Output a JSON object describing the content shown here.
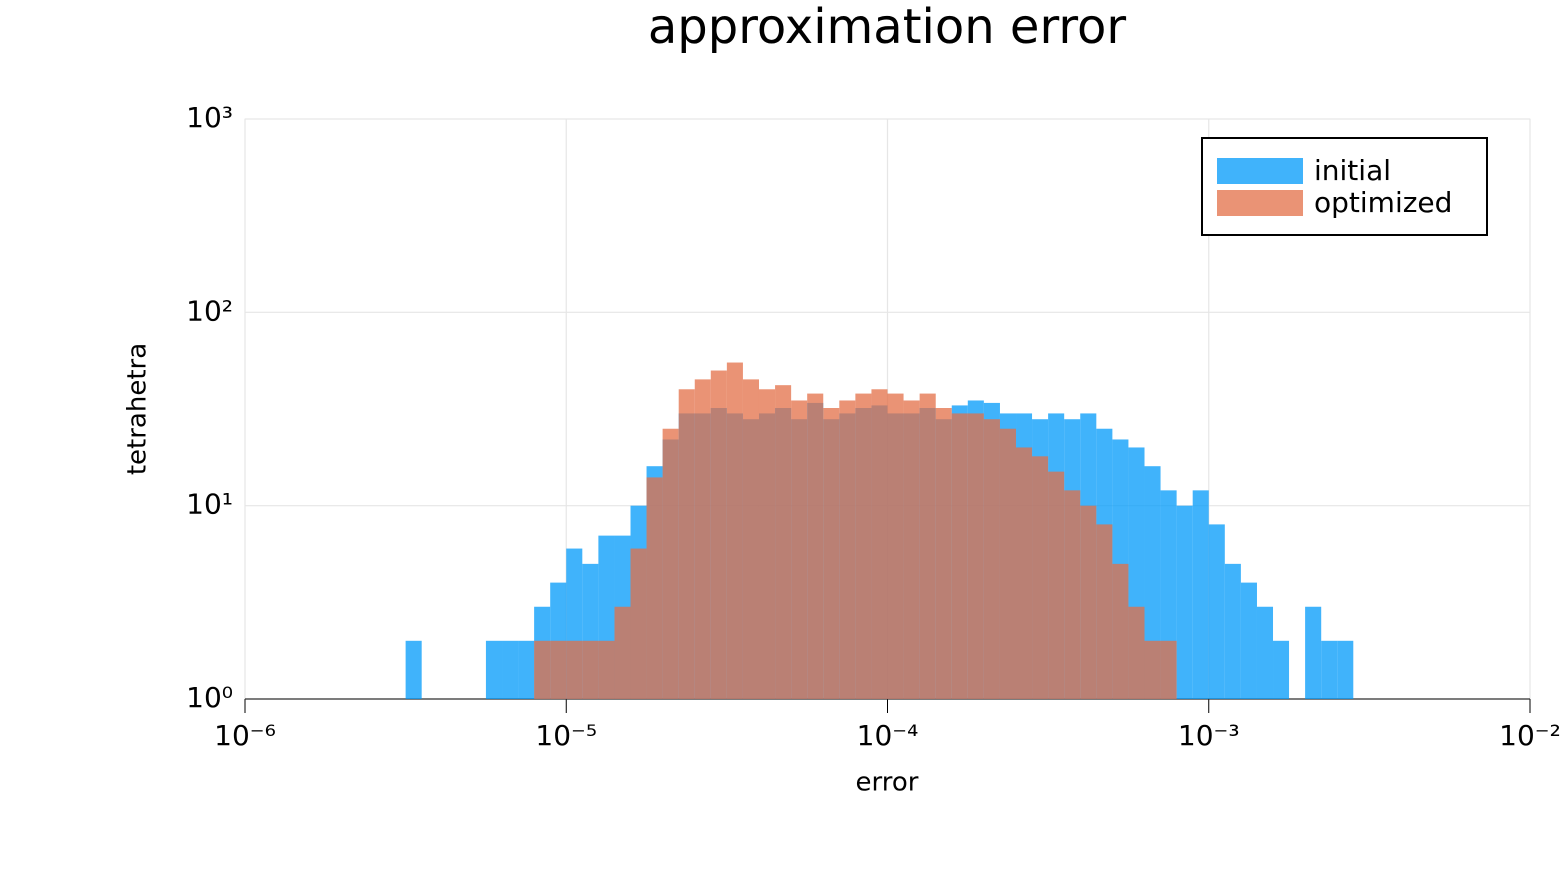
{
  "chart_data": {
    "type": "histogram",
    "title": "approximation error",
    "x_label": "error",
    "y_label": "tetrahetra",
    "xscale": "log",
    "yscale": "log",
    "grid": true,
    "legend": "top-right",
    "xlim": [
      1e-06,
      0.01
    ],
    "xticks": [
      {
        "value": 1e-06,
        "label": "10⁻⁶"
      },
      {
        "value": 1e-05,
        "label": "10⁻⁵"
      },
      {
        "value": 0.0001,
        "label": "10⁻⁴"
      },
      {
        "value": 0.001,
        "label": "10⁻³"
      },
      {
        "value": 0.01,
        "label": "10⁻²"
      }
    ],
    "ylim": [
      1,
      1000
    ],
    "yticks": [
      {
        "value": 1,
        "label": "10⁰"
      },
      {
        "value": 10,
        "label": "10¹"
      },
      {
        "value": 100,
        "label": "10²"
      },
      {
        "value": 1000,
        "label": "10³"
      }
    ],
    "bins": [
      3.162e-06,
      3.548e-06,
      3.981e-06,
      4.467e-06,
      5.012e-06,
      5.623e-06,
      6.31e-06,
      7.079e-06,
      7.943e-06,
      8.913e-06,
      1e-05,
      1.122e-05,
      1.259e-05,
      1.413e-05,
      1.585e-05,
      1.778e-05,
      1.995e-05,
      2.239e-05,
      2.512e-05,
      2.818e-05,
      3.162e-05,
      3.548e-05,
      3.981e-05,
      4.467e-05,
      5.012e-05,
      5.623e-05,
      6.31e-05,
      7.079e-05,
      7.943e-05,
      8.913e-05,
      0.0001,
      0.0001122,
      0.0001259,
      0.0001413,
      0.0001585,
      0.0001778,
      0.0001995,
      0.0002239,
      0.0002512,
      0.0002818,
      0.0003162,
      0.0003548,
      0.0003981,
      0.0004467,
      0.0005012,
      0.0005623,
      0.000631,
      0.0007079,
      0.0007943,
      0.0008913,
      0.001,
      0.001122,
      0.001259,
      0.001413,
      0.001585,
      0.001778,
      0.001995,
      0.002239,
      0.002512,
      0.002818
    ],
    "series": [
      {
        "name": "initial",
        "color": "#009afa",
        "values": [
          2,
          0,
          0,
          0,
          0,
          2,
          2,
          2,
          3,
          4,
          6,
          5,
          7,
          7,
          10,
          16,
          22,
          30,
          30,
          32,
          30,
          28,
          30,
          32,
          28,
          34,
          28,
          30,
          32,
          33,
          30,
          30,
          32,
          28,
          33,
          35,
          34,
          30,
          30,
          28,
          30,
          28,
          30,
          25,
          22,
          20,
          16,
          12,
          10,
          12,
          8,
          5,
          4,
          3,
          2,
          0,
          3,
          2,
          2
        ]
      },
      {
        "name": "optimized",
        "color": "#e36f47",
        "values": [
          0,
          0,
          0,
          0,
          0,
          0,
          0,
          0,
          2,
          2,
          2,
          2,
          2,
          3,
          6,
          14,
          25,
          40,
          45,
          50,
          55,
          45,
          40,
          42,
          35,
          38,
          32,
          35,
          38,
          40,
          38,
          35,
          38,
          32,
          30,
          30,
          28,
          25,
          20,
          18,
          15,
          12,
          10,
          8,
          5,
          3,
          2,
          2,
          0,
          0,
          0,
          0,
          0,
          0,
          0,
          0,
          0,
          0,
          0
        ]
      }
    ]
  }
}
